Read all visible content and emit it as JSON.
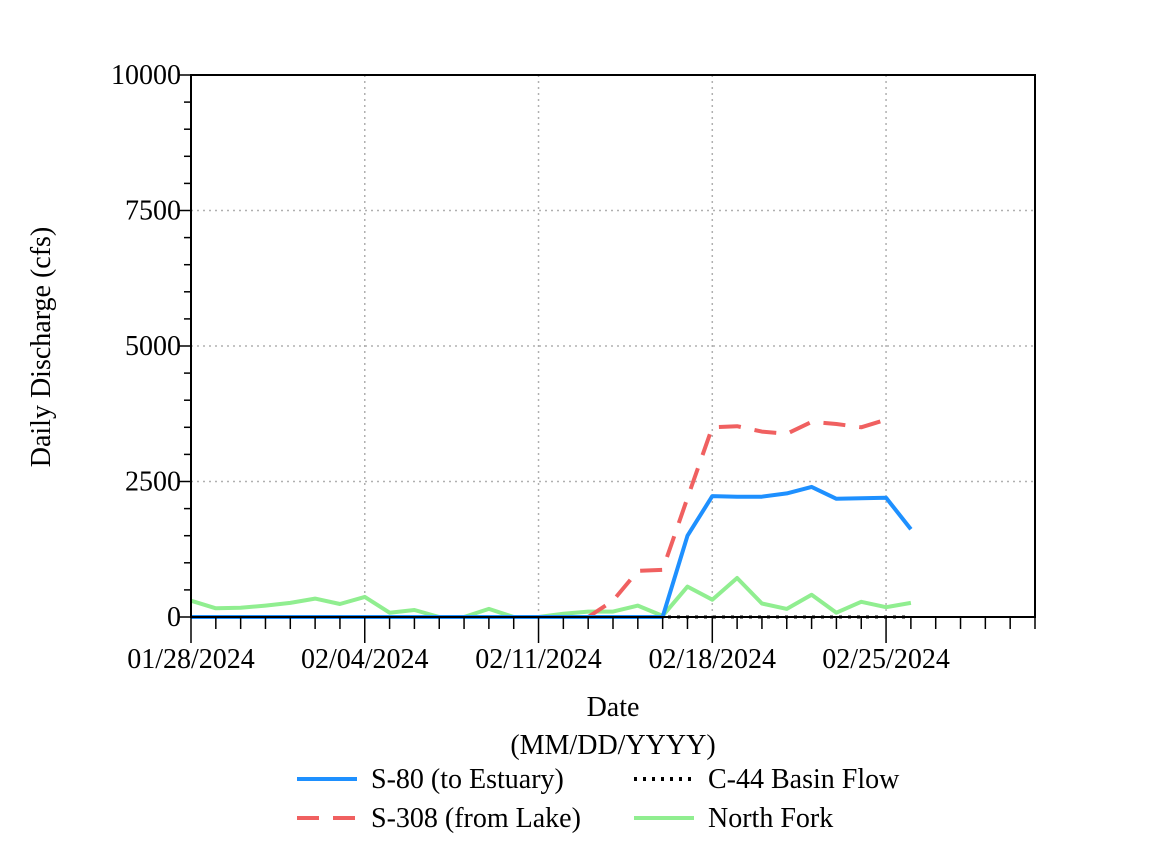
{
  "chart_data": {
    "type": "line",
    "title": "",
    "xlabel": "Date",
    "xlabel_sub": "(MM/DD/YYYY)",
    "ylabel": "Daily Discharge (cfs)",
    "ylim": [
      0,
      10000
    ],
    "xlim": [
      "2024-01-28",
      "2024-03-02"
    ],
    "y_ticks": [
      0,
      2500,
      5000,
      7500,
      10000
    ],
    "x_tick_labels": [
      "01/28/2024",
      "02/04/2024",
      "02/11/2024",
      "02/18/2024",
      "02/25/2024"
    ],
    "x_tick_dates": [
      "2024-01-28",
      "2024-02-04",
      "2024-02-11",
      "2024-02-18",
      "2024-02-25"
    ],
    "grid": true,
    "legend_position": "bottom",
    "dates": [
      "2024-01-28",
      "2024-01-29",
      "2024-01-30",
      "2024-01-31",
      "2024-02-01",
      "2024-02-02",
      "2024-02-03",
      "2024-02-04",
      "2024-02-05",
      "2024-02-06",
      "2024-02-07",
      "2024-02-08",
      "2024-02-09",
      "2024-02-10",
      "2024-02-11",
      "2024-02-12",
      "2024-02-13",
      "2024-02-14",
      "2024-02-15",
      "2024-02-16",
      "2024-02-17",
      "2024-02-18",
      "2024-02-19",
      "2024-02-20",
      "2024-02-21",
      "2024-02-22",
      "2024-02-23",
      "2024-02-24",
      "2024-02-25",
      "2024-02-26"
    ],
    "series": [
      {
        "name": "S-80 (to Estuary)",
        "color": "#1e90ff",
        "dash": "solid",
        "values": [
          0,
          0,
          0,
          0,
          0,
          0,
          0,
          0,
          0,
          0,
          0,
          0,
          0,
          0,
          0,
          0,
          0,
          0,
          0,
          0,
          1500,
          2230,
          2220,
          2220,
          2280,
          2400,
          2180,
          2190,
          2200,
          1620
        ]
      },
      {
        "name": "S-308 (from Lake)",
        "color": "#f06060",
        "dash": "dashed",
        "values": [
          0,
          0,
          0,
          0,
          0,
          0,
          0,
          0,
          0,
          0,
          0,
          0,
          0,
          0,
          0,
          0,
          0,
          300,
          850,
          870,
          2200,
          3500,
          3520,
          3420,
          3380,
          3600,
          3560,
          3500,
          3640,
          null
        ]
      },
      {
        "name": "C-44 Basin Flow",
        "color": "#000000",
        "dash": "dotted",
        "values": [
          0,
          0,
          0,
          0,
          0,
          0,
          0,
          0,
          0,
          0,
          0,
          0,
          0,
          0,
          0,
          0,
          0,
          0,
          0,
          0,
          0,
          0,
          0,
          0,
          0,
          0,
          0,
          0,
          0,
          0
        ]
      },
      {
        "name": "North Fork",
        "color": "#90ee90",
        "dash": "solid",
        "values": [
          300,
          160,
          170,
          210,
          260,
          340,
          240,
          370,
          80,
          130,
          0,
          0,
          150,
          0,
          0,
          60,
          100,
          100,
          210,
          20,
          560,
          320,
          720,
          250,
          150,
          410,
          80,
          280,
          180,
          260
        ]
      }
    ]
  }
}
